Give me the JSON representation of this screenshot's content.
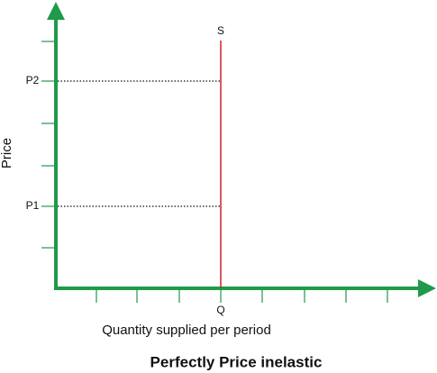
{
  "diagram": {
    "title": "Perfectly Price inelastic",
    "y_axis_label": "Price",
    "x_axis_label": "Quantity supplied per period",
    "curve_label": "S",
    "price_labels": [
      "P2",
      "P1"
    ],
    "quantity_label": "Q"
  }
}
